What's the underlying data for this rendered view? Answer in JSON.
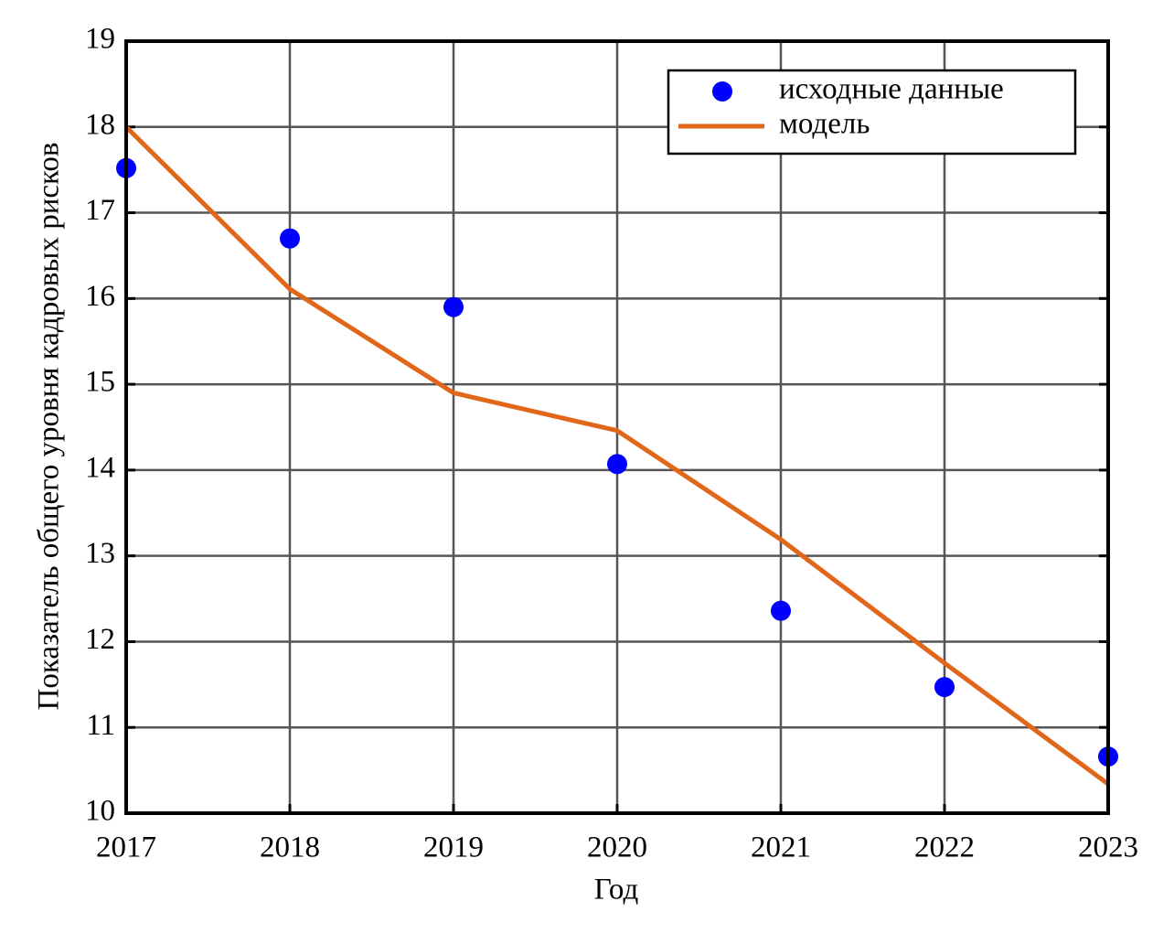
{
  "chart_data": {
    "type": "scatter",
    "xlabel": "Год",
    "ylabel": "Показатель общего уровня кадровых рисков",
    "x": [
      2017,
      2018,
      2019,
      2020,
      2021,
      2022,
      2023
    ],
    "xlim": [
      2017,
      2023
    ],
    "xticks": [
      2017,
      2018,
      2019,
      2020,
      2021,
      2022,
      2023
    ],
    "ylim": [
      10,
      19
    ],
    "yticks": [
      10,
      11,
      12,
      13,
      14,
      15,
      16,
      17,
      18,
      19
    ],
    "grid": true,
    "legend": "upper right",
    "series": [
      {
        "name": "исходные данные",
        "type": "scatter",
        "color": "#0000ff",
        "values": [
          17.52,
          16.7,
          15.9,
          14.07,
          12.36,
          11.47,
          10.66
        ]
      },
      {
        "name": "модель",
        "type": "line",
        "color": "#e0661a",
        "values": [
          18.0,
          16.11,
          14.9,
          14.46,
          13.19,
          11.75,
          10.34
        ]
      }
    ]
  }
}
